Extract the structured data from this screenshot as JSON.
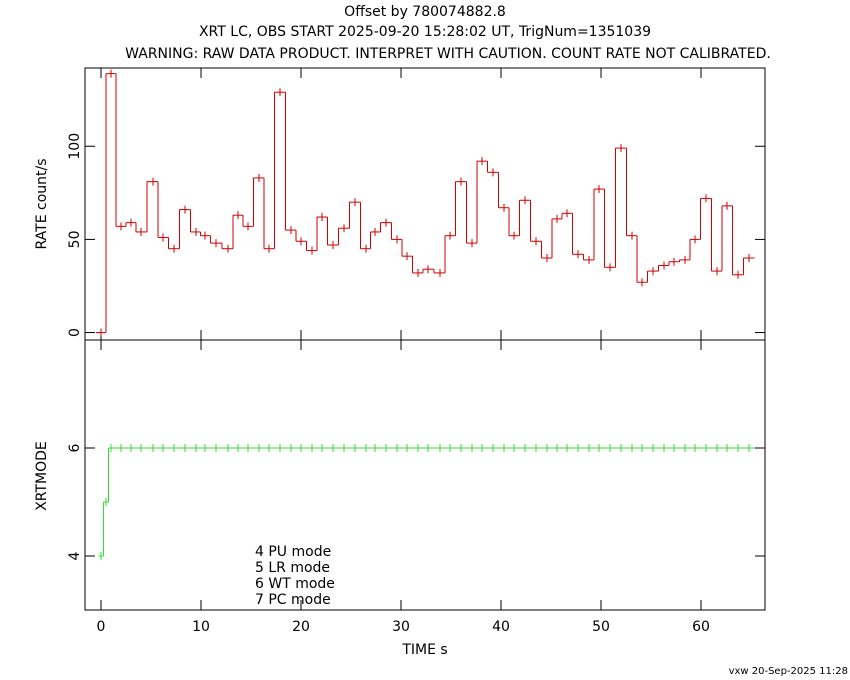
{
  "chart_data": [
    {
      "type": "step",
      "title": "Offset by 780074882.8",
      "subtitle": "XRT LC, OBS START 2025-09-20 15:28:02 UT, TrigNum=1351039",
      "warning": "WARNING: RAW DATA PRODUCT. INTERPRET WITH CAUTION. COUNT RATE NOT CALIBRATED.",
      "y_label": "RATE  count/s",
      "x": [
        0,
        1.0,
        2.0,
        3.0,
        4.0,
        5.2,
        6.2,
        7.3,
        8.4,
        9.5,
        10.4,
        11.5,
        12.7,
        13.7,
        14.7,
        15.8,
        16.8,
        17.9,
        19.0,
        20.0,
        21.1,
        22.1,
        23.2,
        24.3,
        25.4,
        26.5,
        27.4,
        28.5,
        29.6,
        30.6,
        31.7,
        32.7,
        33.9,
        34.9,
        36.0,
        37.1,
        38.1,
        39.2,
        40.3,
        41.3,
        42.4,
        43.5,
        44.6,
        45.6,
        46.6,
        47.7,
        48.8,
        49.8,
        50.9,
        52.0,
        53.1,
        54.1,
        55.2,
        56.3,
        57.3,
        58.4,
        59.4,
        60.5,
        61.6,
        62.6,
        63.7,
        64.8
      ],
      "series": [
        {
          "name": "RATE",
          "color": "#d00000",
          "values": [
            0,
            139,
            57,
            59,
            54,
            81,
            51,
            45,
            66,
            54,
            52,
            48,
            45,
            63,
            57,
            83,
            45,
            129,
            55,
            49,
            44,
            62,
            47,
            56,
            70,
            45,
            54,
            59,
            50,
            41,
            32,
            34,
            32,
            52,
            81,
            48,
            92,
            86,
            67,
            52,
            71,
            49,
            40,
            61,
            64,
            42,
            39,
            77,
            35,
            99,
            52,
            27,
            33,
            36,
            38,
            39,
            50,
            72,
            33,
            68,
            31,
            40
          ]
        }
      ],
      "xlim": [
        -1.6,
        66.4
      ],
      "ylim": [
        -4,
        142
      ],
      "xticks": [
        0,
        10,
        20,
        30,
        40,
        50,
        60
      ],
      "yticks": [
        0,
        50,
        100
      ]
    },
    {
      "type": "step",
      "y_label": "XRTMODE",
      "x_label": "TIME  s",
      "x": [
        0,
        0.5,
        1.0,
        2.0,
        3.0,
        4.0,
        5.2,
        6.2,
        7.3,
        8.4,
        9.5,
        10.4,
        11.5,
        12.7,
        13.7,
        14.7,
        15.8,
        16.8,
        17.9,
        19.0,
        20.0,
        21.1,
        22.1,
        23.2,
        24.3,
        25.4,
        26.5,
        27.4,
        28.5,
        29.6,
        30.6,
        31.7,
        32.7,
        33.9,
        34.9,
        36.0,
        37.1,
        38.1,
        39.2,
        40.3,
        41.3,
        42.4,
        43.5,
        44.6,
        45.6,
        46.6,
        47.7,
        48.8,
        49.8,
        50.9,
        52.0,
        53.1,
        54.1,
        55.2,
        56.3,
        57.3,
        58.4,
        59.4,
        60.5,
        61.6,
        62.6,
        63.7,
        64.8
      ],
      "series": [
        {
          "name": "XRTMODE",
          "color": "#33dd33",
          "values": [
            4,
            5,
            6,
            6,
            6,
            6,
            6,
            6,
            6,
            6,
            6,
            6,
            6,
            6,
            6,
            6,
            6,
            6,
            6,
            6,
            6,
            6,
            6,
            6,
            6,
            6,
            6,
            6,
            6,
            6,
            6,
            6,
            6,
            6,
            6,
            6,
            6,
            6,
            6,
            6,
            6,
            6,
            6,
            6,
            6,
            6,
            6,
            6,
            6,
            6,
            6,
            6,
            6,
            6,
            6,
            6,
            6,
            6,
            6,
            6,
            6,
            6,
            6
          ]
        }
      ],
      "annotations": [
        "4 PU mode",
        "5 LR mode",
        "6 WT mode",
        "7 PC mode"
      ],
      "xlim": [
        -1.6,
        66.4
      ],
      "ylim": [
        3,
        8
      ],
      "xticks": [
        0,
        10,
        20,
        30,
        40,
        50,
        60
      ],
      "yticks": [
        4,
        6
      ]
    }
  ],
  "footer": "vxw 20-Sep-2025 11:28"
}
